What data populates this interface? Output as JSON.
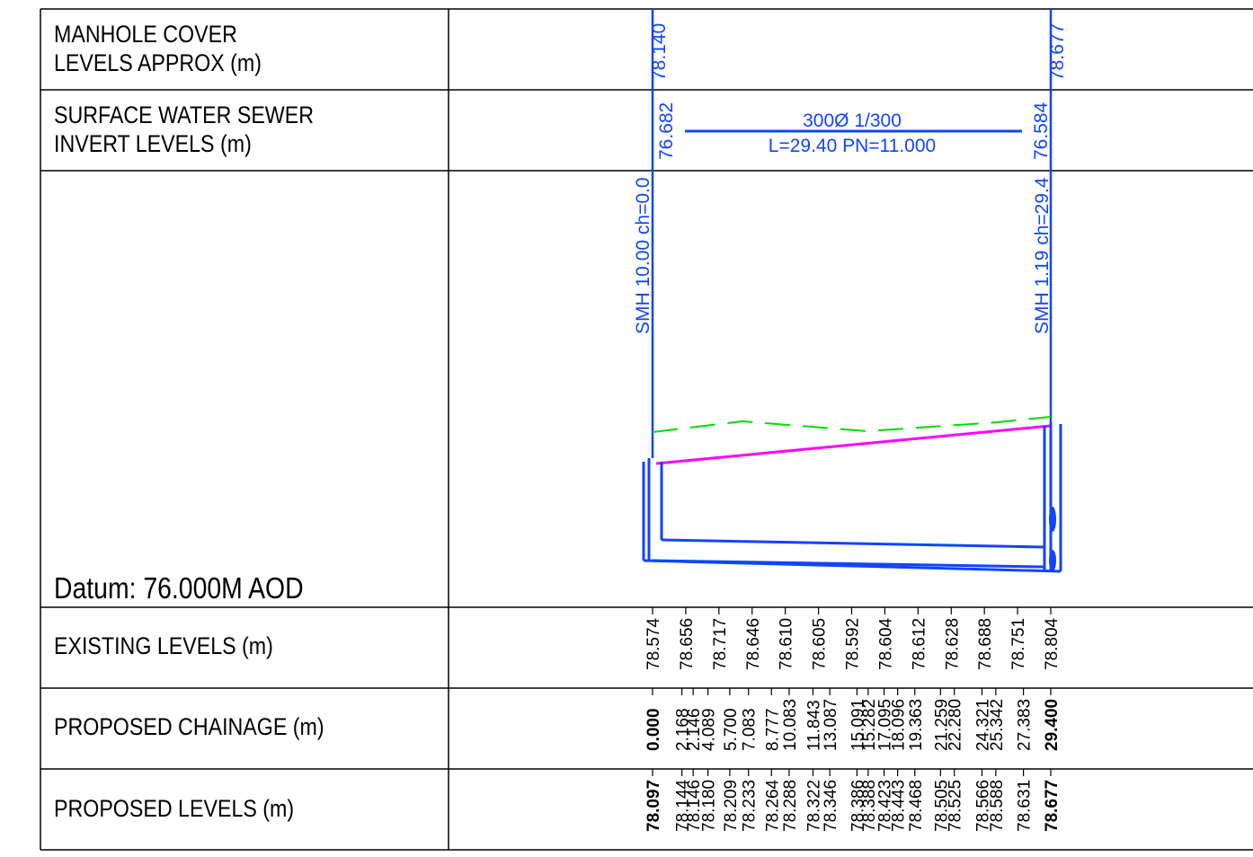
{
  "row_labels": {
    "manhole_line1": "MANHOLE COVER",
    "manhole_line2": "LEVELS APPROX (m)",
    "invert_line1": "SURFACE WATER SEWER",
    "invert_line2": "INVERT LEVELS (m)",
    "existing": "EXISTING LEVELS (m)",
    "chainage": "PROPOSED CHAINAGE (m)",
    "proposed": "PROPOSED LEVELS (m)"
  },
  "datum": "Datum: 76.000M AOD",
  "manholes": {
    "left": {
      "cover": "78.140",
      "invert": "76.682",
      "label": "SMH 10.00 ch=0.0"
    },
    "right": {
      "cover": "78.677",
      "invert": "76.584",
      "label": "SMH 1.19 ch=29.4"
    }
  },
  "pipe": {
    "spec": "300Ø  1/300",
    "details": "L=29.40  PN=11.000"
  },
  "existing_levels": [
    "78.574",
    "78.656",
    "78.717",
    "78.646",
    "78.610",
    "78.605",
    "78.592",
    "78.604",
    "78.612",
    "78.628",
    "78.688",
    "78.751",
    "78.804"
  ],
  "chainages": [
    "0.000",
    "2.168",
    "2.146",
    "4.089",
    "5.700",
    "7.083",
    "8.777",
    "10.083",
    "11.843",
    "13.087",
    "15.091",
    "15.282",
    "17.095",
    "18.096",
    "19.363",
    "21.259",
    "22.280",
    "24.321",
    "25.342",
    "27.383",
    "29.400"
  ],
  "proposed_levels": [
    "78.097",
    "78.144",
    "78.146",
    "78.180",
    "78.209",
    "78.233",
    "78.264",
    "78.288",
    "78.322",
    "78.346",
    "78.386",
    "78.388",
    "78.423",
    "78.443",
    "78.468",
    "78.505",
    "78.525",
    "78.566",
    "78.588",
    "78.631",
    "78.677"
  ],
  "colors": {
    "blue": "#1144ff",
    "magenta": "#ff00ff",
    "green": "#00dd00",
    "grid": "#000000"
  }
}
